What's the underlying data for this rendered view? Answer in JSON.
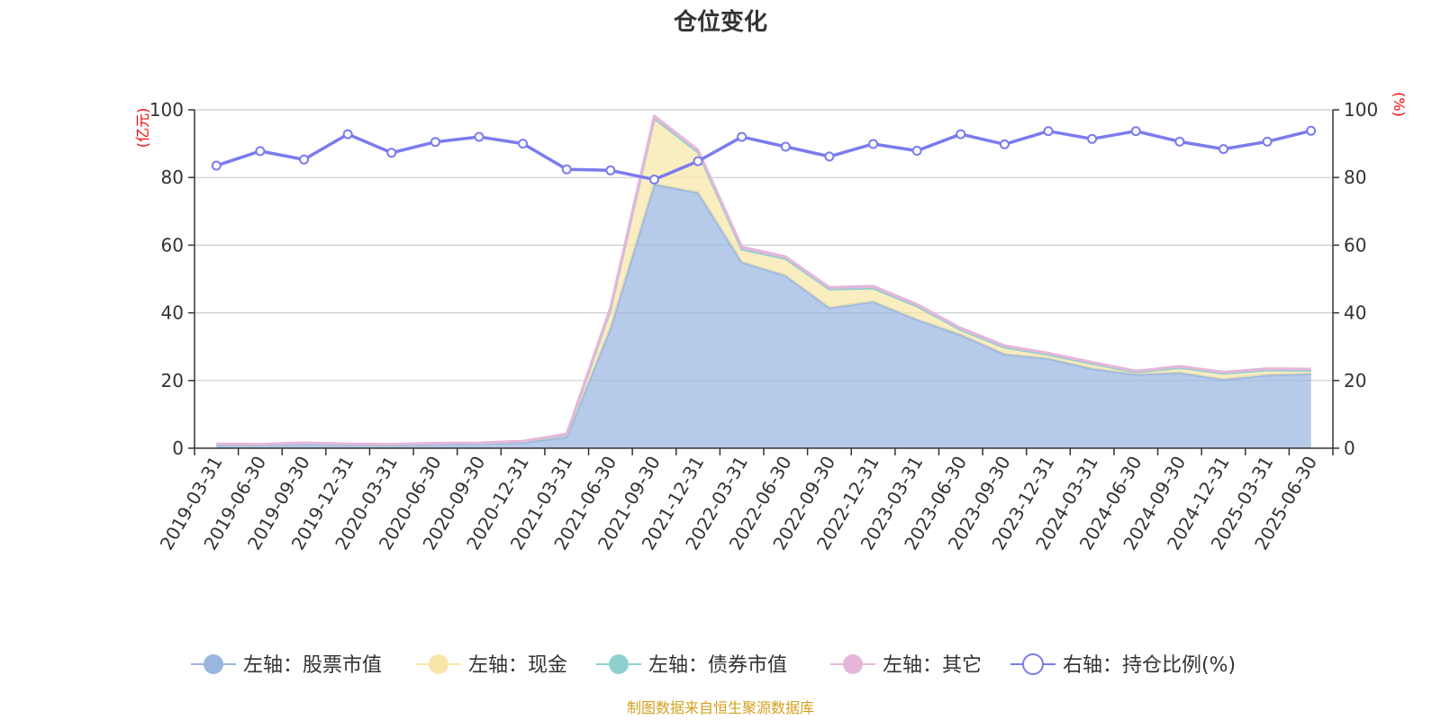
{
  "chart_data": {
    "type": "area",
    "title": "仓位变化",
    "x": [
      "2019-03-31",
      "2019-06-30",
      "2019-09-30",
      "2019-12-31",
      "2020-03-31",
      "2020-06-30",
      "2020-09-30",
      "2020-12-31",
      "2021-03-31",
      "2021-06-30",
      "2021-09-30",
      "2021-12-31",
      "2022-03-31",
      "2022-06-30",
      "2022-09-30",
      "2022-12-31",
      "2023-03-31",
      "2023-06-30",
      "2023-09-30",
      "2023-12-31",
      "2024-03-31",
      "2024-06-30",
      "2024-09-30",
      "2024-12-31",
      "2025-03-31",
      "2025-06-30"
    ],
    "left_axis": {
      "unit": "(亿元)",
      "ylim": [
        0,
        100
      ],
      "ticks": [
        0,
        20,
        40,
        60,
        80,
        100
      ]
    },
    "right_axis": {
      "unit": "(%)",
      "ylim": [
        0,
        100
      ],
      "ticks": [
        0,
        20,
        40,
        60,
        80,
        100
      ]
    },
    "series": [
      {
        "name": "左轴：股票市值",
        "axis": "left",
        "stack": true,
        "color": "#9ab6e0",
        "values": [
          1.0,
          0.9,
          1.2,
          1.0,
          0.9,
          1.1,
          1.3,
          1.7,
          3.3,
          35.5,
          78.0,
          75.5,
          55.0,
          51.0,
          41.5,
          43.3,
          38.0,
          33.5,
          27.8,
          26.5,
          23.5,
          21.8,
          22.3,
          20.3,
          21.6,
          22.0
        ]
      },
      {
        "name": "左轴：现金",
        "axis": "left",
        "stack": true,
        "color": "#f8e6a8",
        "values": [
          0.2,
          0.2,
          0.3,
          0.2,
          0.2,
          0.3,
          0.2,
          0.3,
          0.7,
          5.5,
          19.5,
          12.0,
          3.8,
          5.0,
          5.5,
          4.0,
          4.0,
          1.5,
          2.0,
          1.2,
          1.5,
          0.7,
          1.5,
          1.8,
          1.5,
          1.0
        ]
      },
      {
        "name": "左轴：债券市值",
        "axis": "left",
        "stack": true,
        "color": "#8ed0d0",
        "values": [
          0,
          0,
          0,
          0,
          0,
          0,
          0,
          0,
          0,
          0,
          0,
          0,
          0,
          0,
          0,
          0,
          0,
          0,
          0,
          0,
          0,
          0,
          0,
          0,
          0,
          0
        ]
      },
      {
        "name": "左轴：其它",
        "axis": "left",
        "stack": true,
        "color": "#e6b6da",
        "values": [
          0.1,
          0.1,
          0.1,
          0.1,
          0.1,
          0.1,
          0.1,
          0.1,
          0.2,
          0.5,
          0.7,
          0.6,
          0.7,
          0.6,
          0.5,
          0.6,
          0.5,
          0.5,
          0.5,
          0.4,
          0.4,
          0.3,
          0.4,
          0.4,
          0.4,
          0.4
        ]
      },
      {
        "name": "右轴：持仓比例(%)",
        "axis": "right",
        "type": "line",
        "color": "#7b7bef",
        "values": [
          83.5,
          87.8,
          85.3,
          92.8,
          87.3,
          90.5,
          92.0,
          90.0,
          82.4,
          82.1,
          79.4,
          84.8,
          92.0,
          89.1,
          86.2,
          89.9,
          87.9,
          92.8,
          89.8,
          93.7,
          91.4,
          93.7,
          90.6,
          88.4,
          90.6,
          93.8
        ]
      }
    ],
    "legend_position": "bottom",
    "grid": true
  },
  "source_text": "制图数据来自恒生聚源数据库"
}
